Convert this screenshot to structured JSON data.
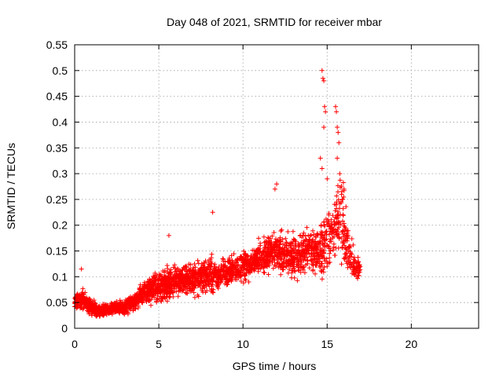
{
  "chart_data": {
    "type": "scatter",
    "title": "Day 048 of 2021, SRMTID for receiver mbar",
    "xlabel": "GPS time / hours",
    "ylabel": "SRMTID / TECUs",
    "xlim": [
      0,
      24
    ],
    "ylim": [
      0,
      0.55
    ],
    "x_ticks": [
      0,
      5,
      10,
      15,
      20
    ],
    "x_tick_labels": [
      "0",
      "5",
      "10",
      "15",
      "20"
    ],
    "y_ticks": [
      0,
      0.05,
      0.1,
      0.15,
      0.2,
      0.25,
      0.3,
      0.35,
      0.4,
      0.45,
      0.5,
      0.55
    ],
    "y_tick_labels": [
      "0",
      "0.05",
      "0.1",
      "0.15",
      "0.2",
      "0.25",
      "0.3",
      "0.35",
      "0.4",
      "0.45",
      "0.5",
      "0.55"
    ],
    "grid": true,
    "marker": "+",
    "marker_color": "#ff0000",
    "envelope": {
      "x": [
        0.0,
        0.5,
        1.0,
        1.5,
        2.0,
        2.5,
        3.0,
        3.5,
        4.0,
        4.5,
        5.0,
        5.5,
        6.0,
        6.5,
        7.0,
        7.5,
        8.0,
        8.5,
        9.0,
        9.5,
        10.0,
        10.5,
        11.0,
        11.5,
        12.0,
        12.5,
        13.0,
        13.5,
        14.0,
        14.5,
        14.8,
        15.0,
        15.3,
        15.6,
        15.8,
        16.0,
        16.3,
        16.6,
        16.9,
        17.0
      ],
      "low": [
        0.03,
        0.03,
        0.02,
        0.02,
        0.025,
        0.025,
        0.02,
        0.03,
        0.04,
        0.04,
        0.04,
        0.045,
        0.05,
        0.05,
        0.05,
        0.06,
        0.06,
        0.06,
        0.07,
        0.08,
        0.08,
        0.09,
        0.09,
        0.1,
        0.1,
        0.09,
        0.08,
        0.09,
        0.09,
        0.08,
        0.07,
        0.09,
        0.1,
        0.11,
        0.1,
        0.09,
        0.09,
        0.08,
        0.08,
        0.08
      ],
      "high": [
        0.07,
        0.08,
        0.06,
        0.05,
        0.05,
        0.055,
        0.06,
        0.07,
        0.1,
        0.11,
        0.12,
        0.13,
        0.13,
        0.14,
        0.14,
        0.14,
        0.15,
        0.14,
        0.15,
        0.15,
        0.16,
        0.16,
        0.18,
        0.19,
        0.2,
        0.2,
        0.2,
        0.2,
        0.21,
        0.22,
        0.26,
        0.28,
        0.25,
        0.3,
        0.35,
        0.3,
        0.2,
        0.16,
        0.15,
        0.14
      ],
      "density": [
        30,
        30,
        30,
        30,
        30,
        30,
        30,
        30,
        32,
        32,
        32,
        32,
        30,
        30,
        28,
        28,
        26,
        26,
        26,
        26,
        28,
        28,
        26,
        26,
        26,
        26,
        24,
        24,
        26,
        26,
        20,
        20,
        20,
        22,
        22,
        22,
        18,
        18,
        14,
        10
      ]
    },
    "outliers": {
      "x": [
        14.7,
        14.75,
        14.8,
        14.85,
        14.9,
        14.8,
        15.5,
        15.55,
        15.6,
        15.65,
        15.7,
        15.6,
        15.75,
        14.6,
        14.7,
        15.0,
        12.0,
        11.9,
        8.2,
        5.6,
        0.4,
        16.0,
        15.9
      ],
      "y": [
        0.5,
        0.485,
        0.48,
        0.43,
        0.42,
        0.39,
        0.43,
        0.42,
        0.39,
        0.38,
        0.36,
        0.33,
        0.3,
        0.33,
        0.31,
        0.29,
        0.28,
        0.27,
        0.225,
        0.18,
        0.115,
        0.27,
        0.25
      ]
    }
  }
}
